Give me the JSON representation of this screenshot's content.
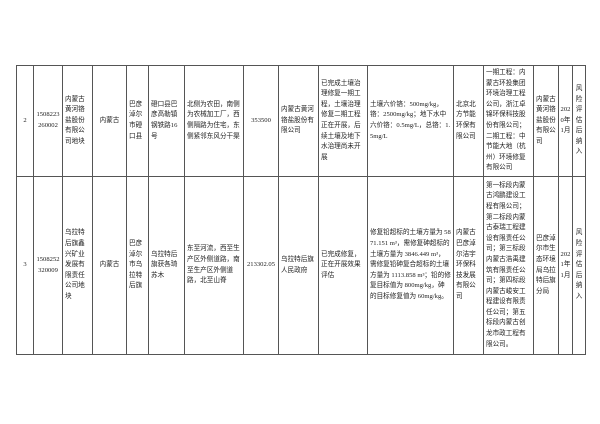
{
  "rows": [
    {
      "no": "2",
      "code": "1508223260002",
      "name": "内蒙古黄河铬盐股份有限公司地块",
      "province": "内蒙古",
      "city": "巴彦淖尔市磴口县",
      "address": "磴口县巴彦高勒镇钢铁路16号",
      "surroundings": "北侧为农田，南侧为农械加工厂，西侧隔路为住宅，东侧紧邻东风分干渠",
      "area": "353500",
      "responsible": "内蒙古黄河铬盐股份有限公司",
      "progress": "已完成土壤治理修复一期工程，土壤治理修复二期工程正在开展，后续土壤及地下水治理尚未开展",
      "targets": "土壤六价铬：500mg/kg，铬：2500mg/kg；地下水中六价铬：0.5mg/L，总铬：1.5mg/L",
      "consultant": "北京北方节能环保有限公司",
      "contractor": "一期工程：内蒙古环投集团环境治理工程公司，浙江卓锦环保科技股份有限公司；二期工程：中节能大地（杭州）环境修复有限公司",
      "supervisor": "内蒙古黄河铬盐股份有限公司",
      "date": "2020年1月",
      "status": "风险评估后纳入"
    },
    {
      "no": "3",
      "code": "1508252320009",
      "name": "乌拉特后旗鑫兴矿业发展有限责任公司地块",
      "province": "内蒙古",
      "city": "巴彦淖尔市乌拉特后旗",
      "address": "乌拉特后旗获各琦苏木",
      "surroundings": "东至河流，西至生产区外侧道路，南至生产区外侧道路，北至山脊",
      "area": "213302.05",
      "responsible": "乌拉特后旗人民政府",
      "progress": "已完成修复，正在开展效果评估",
      "targets": "修复铅超标的土壤方量为 5871.151 m³，需修复砷超标的土壤方量为 3846.449 m³，需修复铅砷复合超标的土壤方量为 1113.858 m³；铅的修复目标值为 800mg/kg，砷的目标修复值为 60mg/kg。",
      "consultant": "内蒙古巴彦淖尔洁宇环保科技发展有限公司",
      "contractor": "第一标段内蒙古鸿鹏建设工程有限公司；第二标段内蒙古泰瑞工程建设有限责任公司；第三标段内蒙古浩禹建筑有限责任公司；第四标段内蒙古峻安工程建设有限责任公司；第五标段内蒙古创龙市政工程有限公司。",
      "supervisor": "巴彦淖尔市生态环境局乌拉特后旗分局",
      "date": "2021年1月",
      "status": "风险评估后纳入"
    }
  ]
}
